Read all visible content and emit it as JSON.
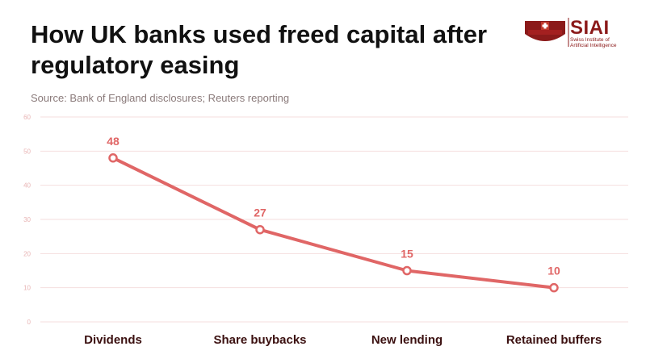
{
  "header": {
    "title": "How UK banks used freed capital after regulatory easing",
    "source": "Source: Bank of England disclosures; Reuters reporting"
  },
  "logo": {
    "name": "SIAI",
    "subtitle_line1": "Swiss Institute of",
    "subtitle_line2": "Artificial Intelligence",
    "color": "#8b1a1a"
  },
  "chart_data": {
    "type": "line",
    "title": "How UK banks used freed capital after regulatory easing",
    "categories": [
      "Dividends",
      "Share buybacks",
      "New lending",
      "Retained buffers"
    ],
    "series": [
      {
        "values": [
          48,
          27,
          15,
          10
        ],
        "color": "#e06666"
      }
    ],
    "yticks": [
      0,
      10,
      20,
      30,
      40,
      50,
      60
    ],
    "ylim": [
      0,
      60
    ],
    "grid": true,
    "data_labels": true,
    "legend": "none",
    "colors": {
      "line": "#e06666",
      "grid": "#f4dede",
      "tick": "#e8b4b4",
      "label": "#e06666"
    }
  }
}
